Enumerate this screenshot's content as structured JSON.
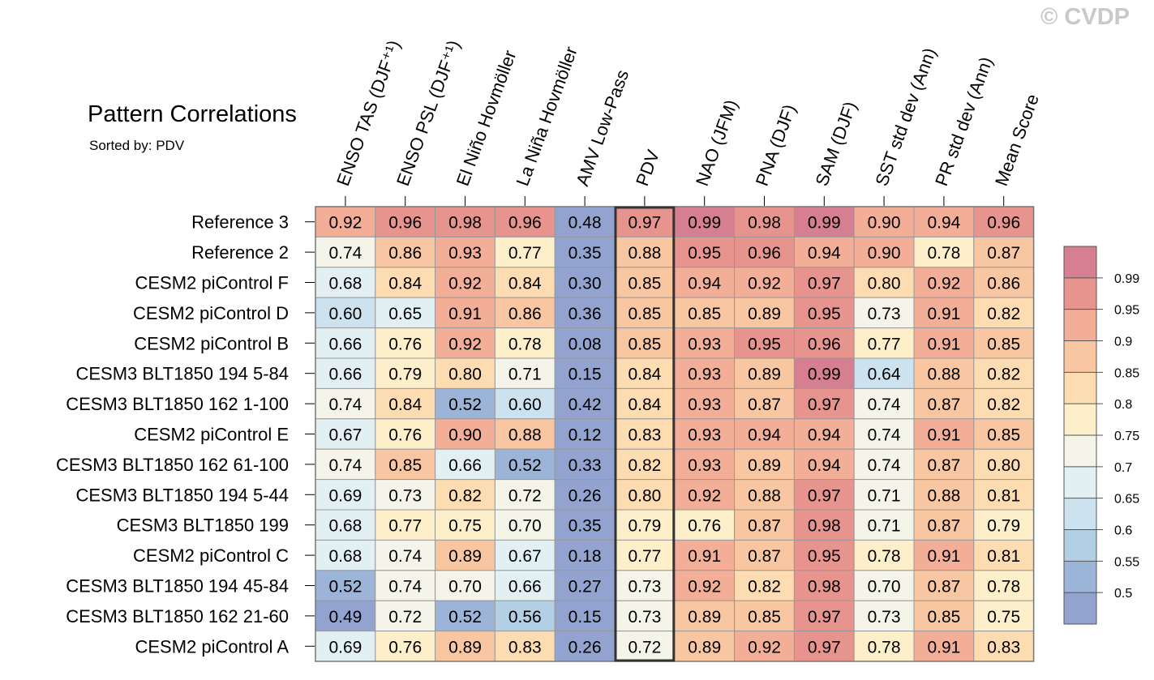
{
  "watermark": "© CVDP",
  "chart_data": {
    "type": "heatmap",
    "title": "Pattern Correlations",
    "subtitle": "Sorted by: PDV",
    "highlight_column": "PDV",
    "columns": [
      "ENSO TAS (DJF⁺¹)",
      "ENSO PSL (DJF⁺¹)",
      "El Niño Hovmöller",
      "La Niña Hovmöller",
      "AMV Low-Pass",
      "PDV",
      "NAO (JFM)",
      "PNA (DJF)",
      "SAM (DJF)",
      "SST std dev (Ann)",
      "PR std dev (Ann)",
      "Mean Score"
    ],
    "rows": [
      "Reference 3",
      "Reference 2",
      "CESM2 piControl F",
      "CESM2 piControl D",
      "CESM2 piControl B",
      "CESM3 BLT1850 194 5-84",
      "CESM3 BLT1850 162 1-100",
      "CESM2 piControl E",
      "CESM3 BLT1850 162 61-100",
      "CESM3 BLT1850 194 5-44",
      "CESM3 BLT1850 199",
      "CESM2 piControl C",
      "CESM3 BLT1850 194 45-84",
      "CESM3 BLT1850 162 21-60",
      "CESM2 piControl A"
    ],
    "values": [
      [
        "0.92",
        "0.96",
        "0.98",
        "0.96",
        "0.48",
        "0.97",
        "0.99",
        "0.98",
        "0.99",
        "0.90",
        "0.94",
        "0.96"
      ],
      [
        "0.74",
        "0.86",
        "0.93",
        "0.77",
        "0.35",
        "0.88",
        "0.95",
        "0.96",
        "0.94",
        "0.90",
        "0.78",
        "0.87"
      ],
      [
        "0.68",
        "0.84",
        "0.92",
        "0.84",
        "0.30",
        "0.85",
        "0.94",
        "0.92",
        "0.97",
        "0.80",
        "0.92",
        "0.86"
      ],
      [
        "0.60",
        "0.65",
        "0.91",
        "0.86",
        "0.36",
        "0.85",
        "0.85",
        "0.89",
        "0.95",
        "0.73",
        "0.91",
        "0.82"
      ],
      [
        "0.66",
        "0.76",
        "0.92",
        "0.78",
        "0.08",
        "0.85",
        "0.93",
        "0.95",
        "0.96",
        "0.77",
        "0.91",
        "0.85"
      ],
      [
        "0.66",
        "0.79",
        "0.80",
        "0.71",
        "0.15",
        "0.84",
        "0.93",
        "0.89",
        "0.99",
        "0.64",
        "0.88",
        "0.82"
      ],
      [
        "0.74",
        "0.84",
        "0.52",
        "0.60",
        "0.42",
        "0.84",
        "0.93",
        "0.87",
        "0.97",
        "0.74",
        "0.87",
        "0.82"
      ],
      [
        "0.67",
        "0.76",
        "0.90",
        "0.88",
        "0.12",
        "0.83",
        "0.93",
        "0.94",
        "0.94",
        "0.74",
        "0.91",
        "0.85"
      ],
      [
        "0.74",
        "0.85",
        "0.66",
        "0.52",
        "0.33",
        "0.82",
        "0.93",
        "0.89",
        "0.94",
        "0.74",
        "0.87",
        "0.80"
      ],
      [
        "0.69",
        "0.73",
        "0.82",
        "0.72",
        "0.26",
        "0.80",
        "0.92",
        "0.88",
        "0.97",
        "0.71",
        "0.88",
        "0.81"
      ],
      [
        "0.68",
        "0.77",
        "0.75",
        "0.70",
        "0.35",
        "0.79",
        "0.76",
        "0.87",
        "0.98",
        "0.71",
        "0.87",
        "0.79"
      ],
      [
        "0.68",
        "0.74",
        "0.89",
        "0.67",
        "0.18",
        "0.77",
        "0.91",
        "0.87",
        "0.95",
        "0.78",
        "0.91",
        "0.81"
      ],
      [
        "0.52",
        "0.74",
        "0.70",
        "0.66",
        "0.27",
        "0.73",
        "0.92",
        "0.82",
        "0.98",
        "0.70",
        "0.87",
        "0.78"
      ],
      [
        "0.49",
        "0.72",
        "0.52",
        "0.56",
        "0.15",
        "0.73",
        "0.89",
        "0.85",
        "0.97",
        "0.73",
        "0.85",
        "0.75"
      ],
      [
        "0.69",
        "0.76",
        "0.89",
        "0.83",
        "0.26",
        "0.72",
        "0.89",
        "0.92",
        "0.97",
        "0.78",
        "0.91",
        "0.83"
      ]
    ],
    "colorbar": {
      "levels": [
        "0.99",
        "0.95",
        "0.9",
        "0.85",
        "0.8",
        "0.75",
        "0.7",
        "0.65",
        "0.6",
        "0.55",
        "0.5"
      ],
      "colors": [
        "#d57f91",
        "#e8948e",
        "#f2ae97",
        "#f8c6a1",
        "#fcdcb0",
        "#fdefc9",
        "#f4f4e9",
        "#e3f0f3",
        "#cce2ee",
        "#b2cfe4",
        "#9cb4d8",
        "#92a3d0"
      ]
    }
  }
}
